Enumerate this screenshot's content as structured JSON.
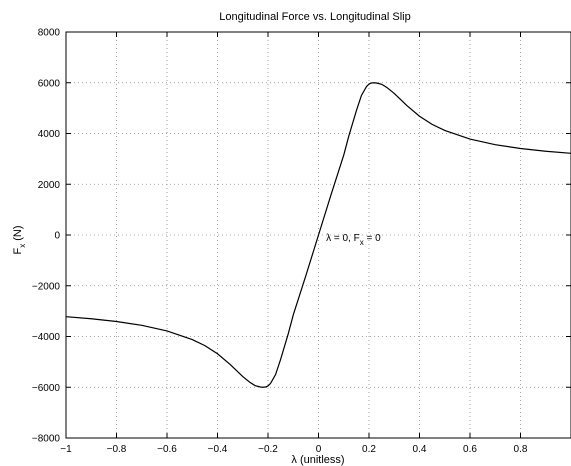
{
  "chart_data": {
    "type": "line",
    "title": "Longitudinal Force vs. Longitudinal Slip",
    "xlabel": "λ (unitless)",
    "ylabel": "F_x (N)",
    "ylabel_main": "F",
    "ylabel_sub": "x",
    "ylabel_rest": " (N)",
    "xlim": [
      -1,
      1
    ],
    "ylim": [
      -8000,
      8000
    ],
    "grid": true,
    "xticks": [
      -1,
      -0.8,
      -0.6,
      -0.4,
      -0.2,
      0,
      0.2,
      0.4,
      0.6,
      0.8
    ],
    "xtick_labels": [
      "−1",
      "−0.8",
      "−0.6",
      "−0.4",
      "−0.2",
      "0",
      "0.2",
      "0.4",
      "0.6",
      "0.8"
    ],
    "yticks": [
      -8000,
      -6000,
      -4000,
      -2000,
      0,
      2000,
      4000,
      6000,
      8000
    ],
    "ytick_labels": [
      "−8000",
      "−6000",
      "−4000",
      "−2000",
      "0",
      "2000",
      "4000",
      "6000",
      "8000"
    ],
    "annotation": {
      "text_a": "λ = 0, F",
      "sub": "x",
      "text_b": " = 0",
      "x": 0.03,
      "y": 0
    },
    "series": [
      {
        "x": [
          -1,
          -0.9,
          -0.8,
          -0.7,
          -0.6,
          -0.5,
          -0.45,
          -0.4,
          -0.35,
          -0.3,
          -0.27,
          -0.25,
          -0.23,
          -0.22,
          -0.21,
          -0.2,
          -0.19,
          -0.17,
          -0.15,
          -0.12,
          -0.1,
          -0.05,
          0,
          0.05,
          0.1,
          0.12,
          0.15,
          0.17,
          0.19,
          0.2,
          0.21,
          0.22,
          0.23,
          0.25,
          0.27,
          0.3,
          0.35,
          0.4,
          0.45,
          0.5,
          0.6,
          0.7,
          0.8,
          0.9,
          1
        ],
        "y": [
          -3220,
          -3300,
          -3410,
          -3560,
          -3780,
          -4120,
          -4360,
          -4680,
          -5100,
          -5580,
          -5820,
          -5940,
          -5990,
          -6000,
          -5990,
          -5950,
          -5850,
          -5500,
          -4900,
          -3900,
          -3150,
          -1600,
          0,
          1600,
          3150,
          3900,
          4900,
          5500,
          5850,
          5950,
          5990,
          6000,
          5990,
          5940,
          5820,
          5580,
          5100,
          4680,
          4360,
          4120,
          3780,
          3560,
          3410,
          3300,
          3220
        ]
      }
    ]
  }
}
